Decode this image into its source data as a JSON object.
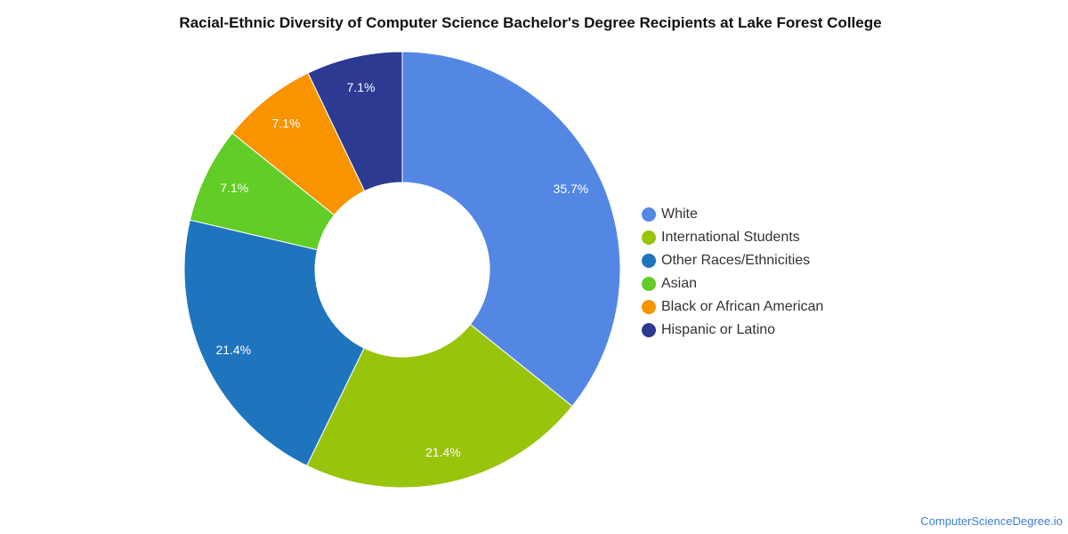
{
  "chart_data": {
    "type": "pie",
    "variant": "donut",
    "title": "Racial-Ethnic Diversity of Computer Science Bachelor's Degree Recipients at Lake Forest College",
    "unit": "%",
    "categories": [
      "White",
      "International Students",
      "Other Races/Ethnicities",
      "Asian",
      "Black or African American",
      "Hispanic or Latino"
    ],
    "values": [
      35.7,
      21.4,
      21.4,
      7.1,
      7.1,
      7.1
    ],
    "value_labels": [
      "35.7%",
      "21.4%",
      "21.4%",
      "7.1%",
      "7.1%",
      "7.1%"
    ],
    "colors": [
      "#5487e4",
      "#99c40c",
      "#1f74be",
      "#61cd26",
      "#f89400",
      "#2d3a91"
    ],
    "legend_position": "right",
    "start": "top, clockwise"
  },
  "footer": {
    "source": "ComputerScienceDegree.io"
  }
}
